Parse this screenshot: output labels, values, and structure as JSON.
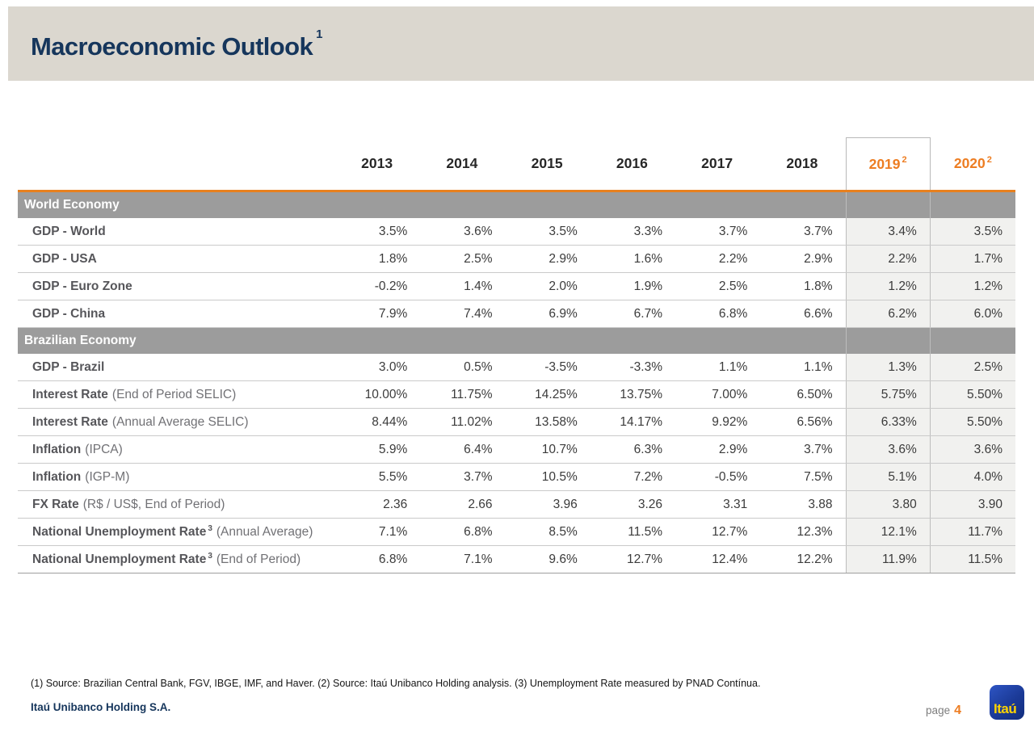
{
  "slide": {
    "title": "Macroeconomic Outlook",
    "title_sup": "1",
    "footnote": "(1) Source: Brazilian Central Bank, FGV, IBGE, IMF, and Haver. (2) Source: Itaú Unibanco Holding analysis. (3) Unemployment Rate measured by PNAD Contínua.",
    "company": "Itaú Unibanco Holding S.A.",
    "page_label": "page",
    "page_number": "4",
    "logo_text": "Itaú"
  },
  "colors": {
    "accent_orange": "#ed7d22",
    "navy": "#16365c",
    "header_band": "#dbd7cf",
    "section_banner": "#9c9c9c",
    "forecast_column_bg": "#f1f1ef",
    "logo_blue": "#1b3a97",
    "logo_yellow": "#ffd400"
  },
  "table": {
    "years": [
      {
        "label": "2013",
        "sup": ""
      },
      {
        "label": "2014",
        "sup": ""
      },
      {
        "label": "2015",
        "sup": ""
      },
      {
        "label": "2016",
        "sup": ""
      },
      {
        "label": "2017",
        "sup": ""
      },
      {
        "label": "2018",
        "sup": ""
      },
      {
        "label": "2019",
        "sup": "2"
      },
      {
        "label": "2020",
        "sup": "2"
      }
    ],
    "sections": [
      {
        "title": "World Economy",
        "rows": [
          {
            "label": "GDP - World",
            "sup": "",
            "note": "",
            "values": [
              "3.5%",
              "3.6%",
              "3.5%",
              "3.3%",
              "3.7%",
              "3.7%",
              "3.4%",
              "3.5%"
            ]
          },
          {
            "label": "GDP - USA",
            "sup": "",
            "note": "",
            "values": [
              "1.8%",
              "2.5%",
              "2.9%",
              "1.6%",
              "2.2%",
              "2.9%",
              "2.2%",
              "1.7%"
            ]
          },
          {
            "label": "GDP - Euro Zone",
            "sup": "",
            "note": "",
            "values": [
              "-0.2%",
              "1.4%",
              "2.0%",
              "1.9%",
              "2.5%",
              "1.8%",
              "1.2%",
              "1.2%"
            ]
          },
          {
            "label": "GDP - China",
            "sup": "",
            "note": "",
            "values": [
              "7.9%",
              "7.4%",
              "6.9%",
              "6.7%",
              "6.8%",
              "6.6%",
              "6.2%",
              "6.0%"
            ]
          }
        ]
      },
      {
        "title": "Brazilian Economy",
        "rows": [
          {
            "label": "GDP - Brazil",
            "sup": "",
            "note": "",
            "values": [
              "3.0%",
              "0.5%",
              "-3.5%",
              "-3.3%",
              "1.1%",
              "1.1%",
              "1.3%",
              "2.5%"
            ]
          },
          {
            "label": "Interest Rate",
            "sup": "",
            "note": "(End of Period SELIC)",
            "values": [
              "10.00%",
              "11.75%",
              "14.25%",
              "13.75%",
              "7.00%",
              "6.50%",
              "5.75%",
              "5.50%"
            ]
          },
          {
            "label": "Interest Rate",
            "sup": "",
            "note": "(Annual Average SELIC)",
            "values": [
              "8.44%",
              "11.02%",
              "13.58%",
              "14.17%",
              "9.92%",
              "6.56%",
              "6.33%",
              "5.50%"
            ]
          },
          {
            "label": "Inflation",
            "sup": "",
            "note": "(IPCA)",
            "values": [
              "5.9%",
              "6.4%",
              "10.7%",
              "6.3%",
              "2.9%",
              "3.7%",
              "3.6%",
              "3.6%"
            ]
          },
          {
            "label": "Inflation",
            "sup": "",
            "note": "(IGP-M)",
            "values": [
              "5.5%",
              "3.7%",
              "10.5%",
              "7.2%",
              "-0.5%",
              "7.5%",
              "5.1%",
              "4.0%"
            ]
          },
          {
            "label": "FX Rate",
            "sup": "",
            "note": "(R$ / US$, End of Period)",
            "values": [
              "2.36",
              "2.66",
              "3.96",
              "3.26",
              "3.31",
              "3.88",
              "3.80",
              "3.90"
            ]
          },
          {
            "label": "National Unemployment Rate",
            "sup": "3",
            "note": "(Annual Average)",
            "values": [
              "7.1%",
              "6.8%",
              "8.5%",
              "11.5%",
              "12.7%",
              "12.3%",
              "12.1%",
              "11.7%"
            ]
          },
          {
            "label": "National Unemployment Rate",
            "sup": "3",
            "note": "(End of Period)",
            "values": [
              "6.8%",
              "7.1%",
              "9.6%",
              "12.7%",
              "12.4%",
              "12.2%",
              "11.9%",
              "11.5%"
            ]
          }
        ]
      }
    ]
  }
}
